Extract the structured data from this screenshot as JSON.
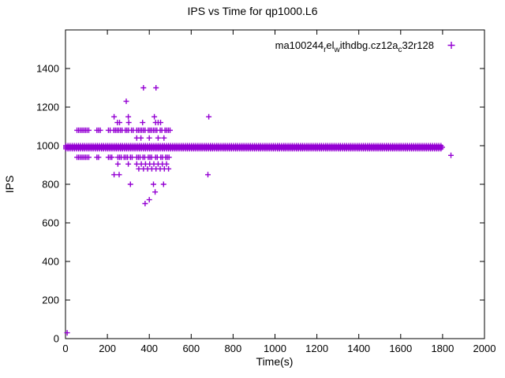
{
  "window": {
    "bg": "#ffffff"
  },
  "chart_data": {
    "type": "scatter",
    "title": "IPS vs Time for qp1000.L6",
    "xlabel": "Time(s)",
    "ylabel": "IPS",
    "xlim": [
      0,
      2000
    ],
    "ylim": [
      0,
      1600
    ],
    "x_ticks": [
      0,
      200,
      400,
      600,
      800,
      1000,
      1200,
      1400,
      1600,
      1800,
      2000
    ],
    "y_ticks": [
      0,
      200,
      400,
      600,
      800,
      1000,
      1200,
      1400
    ],
    "grid": false,
    "marker": "plus",
    "marker_color": "#9400d3",
    "axis_color": "#000000",
    "legend": {
      "position": "top-right-inside",
      "label_plain": "ma100244_rel_withdbg.cz12a_c32r128",
      "parts": [
        {
          "text": "ma100244",
          "sub": false
        },
        {
          "text": "r",
          "sub": true
        },
        {
          "text": "el",
          "sub": false
        },
        {
          "text": "w",
          "sub": true
        },
        {
          "text": "ithdbg.cz12a",
          "sub": false
        },
        {
          "text": "c",
          "sub": true
        },
        {
          "text": "32r128",
          "sub": false
        }
      ]
    },
    "series": [
      {
        "name": "ma100244_rel_withdbg.cz12a_c32r128",
        "color": "#9400d3",
        "band": {
          "comment": "dense horizontal band of samples at ~990 IPS from t=0 to t=1800",
          "x_start": 2,
          "x_end": 1798,
          "rows": [
            {
              "y": 992,
              "step": 4
            },
            {
              "y": 984,
              "step": 10
            },
            {
              "y": 1000,
              "step": 10
            }
          ]
        },
        "points": [
          [
            55,
            1080
          ],
          [
            63,
            1080
          ],
          [
            71,
            1080
          ],
          [
            79,
            1080
          ],
          [
            87,
            1080
          ],
          [
            95,
            1080
          ],
          [
            103,
            1080
          ],
          [
            111,
            1080
          ],
          [
            150,
            1080
          ],
          [
            158,
            1080
          ],
          [
            166,
            1080
          ],
          [
            205,
            1080
          ],
          [
            213,
            1080
          ],
          [
            230,
            1080
          ],
          [
            238,
            1080
          ],
          [
            246,
            1080
          ],
          [
            254,
            1080
          ],
          [
            262,
            1080
          ],
          [
            270,
            1080
          ],
          [
            285,
            1080
          ],
          [
            293,
            1080
          ],
          [
            301,
            1080
          ],
          [
            315,
            1080
          ],
          [
            323,
            1080
          ],
          [
            340,
            1080
          ],
          [
            348,
            1080
          ],
          [
            356,
            1080
          ],
          [
            364,
            1080
          ],
          [
            372,
            1080
          ],
          [
            380,
            1080
          ],
          [
            395,
            1080
          ],
          [
            403,
            1080
          ],
          [
            411,
            1080
          ],
          [
            420,
            1080
          ],
          [
            428,
            1080
          ],
          [
            436,
            1080
          ],
          [
            452,
            1080
          ],
          [
            460,
            1080
          ],
          [
            475,
            1080
          ],
          [
            483,
            1080
          ],
          [
            491,
            1080
          ],
          [
            499,
            1080
          ],
          [
            55,
            940
          ],
          [
            63,
            940
          ],
          [
            71,
            940
          ],
          [
            79,
            940
          ],
          [
            87,
            940
          ],
          [
            95,
            940
          ],
          [
            103,
            940
          ],
          [
            111,
            940
          ],
          [
            150,
            940
          ],
          [
            158,
            940
          ],
          [
            205,
            940
          ],
          [
            213,
            940
          ],
          [
            221,
            940
          ],
          [
            250,
            940
          ],
          [
            258,
            940
          ],
          [
            266,
            940
          ],
          [
            280,
            940
          ],
          [
            288,
            940
          ],
          [
            296,
            940
          ],
          [
            310,
            940
          ],
          [
            318,
            940
          ],
          [
            340,
            940
          ],
          [
            348,
            940
          ],
          [
            356,
            940
          ],
          [
            370,
            940
          ],
          [
            378,
            940
          ],
          [
            395,
            940
          ],
          [
            403,
            940
          ],
          [
            411,
            940
          ],
          [
            430,
            940
          ],
          [
            438,
            940
          ],
          [
            455,
            940
          ],
          [
            463,
            940
          ],
          [
            478,
            940
          ],
          [
            486,
            940
          ],
          [
            494,
            940
          ],
          [
            232,
            1150
          ],
          [
            300,
            1150
          ],
          [
            424,
            1150
          ],
          [
            684,
            1150
          ],
          [
            290,
            1230
          ],
          [
            372,
            1300
          ],
          [
            432,
            1300
          ],
          [
            248,
            1120
          ],
          [
            258,
            1120
          ],
          [
            302,
            1120
          ],
          [
            368,
            1120
          ],
          [
            430,
            1120
          ],
          [
            442,
            1120
          ],
          [
            454,
            1120
          ],
          [
            340,
            1040
          ],
          [
            360,
            1040
          ],
          [
            400,
            1040
          ],
          [
            442,
            1040
          ],
          [
            470,
            1040
          ],
          [
            250,
            905
          ],
          [
            300,
            905
          ],
          [
            340,
            905
          ],
          [
            362,
            905
          ],
          [
            382,
            905
          ],
          [
            402,
            905
          ],
          [
            422,
            905
          ],
          [
            442,
            905
          ],
          [
            462,
            905
          ],
          [
            482,
            905
          ],
          [
            350,
            880
          ],
          [
            372,
            880
          ],
          [
            392,
            880
          ],
          [
            412,
            880
          ],
          [
            432,
            880
          ],
          [
            452,
            880
          ],
          [
            472,
            880
          ],
          [
            492,
            880
          ],
          [
            232,
            850
          ],
          [
            256,
            850
          ],
          [
            680,
            850
          ],
          [
            310,
            800
          ],
          [
            420,
            800
          ],
          [
            468,
            800
          ],
          [
            428,
            760
          ],
          [
            400,
            720
          ],
          [
            380,
            700
          ],
          [
            8,
            30
          ],
          [
            1840,
            950
          ]
        ]
      }
    ]
  }
}
